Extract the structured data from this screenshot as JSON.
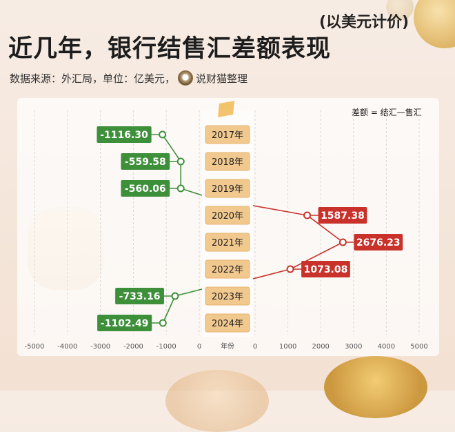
{
  "title": "近几年，银行结售汇差额表现",
  "subtitle": "(以美元计价)",
  "source_text": "数据来源：外汇局，单位：亿美元，",
  "source_brand": "说财猫整理",
  "formula": "差额 = 结汇—售汇",
  "colors": {
    "negative": "#3d8f3a",
    "positive": "#c8322b",
    "year_box": "#f1c98f"
  },
  "chart_data": {
    "type": "bar",
    "categories": [
      "2017年",
      "2018年",
      "2019年",
      "2020年",
      "2021年",
      "2022年",
      "2023年",
      "2024年"
    ],
    "values": [
      -1116.3,
      -559.58,
      -560.06,
      1587.38,
      2676.23,
      1073.08,
      -733.16,
      -1102.49
    ],
    "value_labels": [
      "-1116.30",
      "-559.58",
      "-560.06",
      "1587.38",
      "2676.23",
      "1073.08",
      "-733.16",
      "-1102.49"
    ],
    "title": "近几年，银行结售汇差额表现",
    "xlabel": "年份",
    "left_axis_ticks": [
      "-5000",
      "-4000",
      "-3000",
      "-2000",
      "-1000",
      "0"
    ],
    "right_axis_ticks": [
      "0",
      "1000",
      "2000",
      "3000",
      "4000",
      "5000"
    ],
    "xlim_left": [
      -5000,
      0
    ],
    "xlim_right": [
      0,
      5000
    ],
    "grid": true
  }
}
